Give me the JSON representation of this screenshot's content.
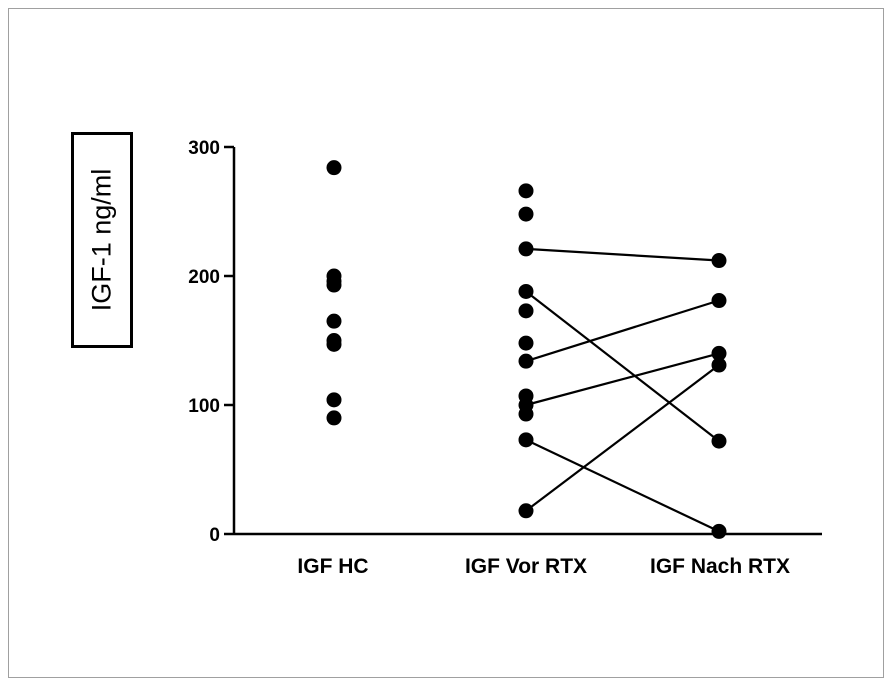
{
  "chart_data": {
    "type": "scatter",
    "title": "",
    "xlabel": "",
    "ylabel": "IGF-1 ng/ml",
    "ylim": [
      0,
      300
    ],
    "yticks": [
      0,
      100,
      200,
      300
    ],
    "categories": [
      "IGF HC",
      "IGF Vor RTX",
      "IGF Nach RTX"
    ],
    "grid": false,
    "legend": "none",
    "marker_color": "#000000",
    "series": [
      {
        "category": "IGF HC",
        "values": [
          284,
          200,
          196,
          193,
          165,
          150,
          147,
          104,
          90
        ]
      },
      {
        "category": "IGF Vor RTX",
        "values": [
          266,
          248,
          221,
          188,
          173,
          148,
          134,
          107,
          100,
          93,
          73,
          18
        ]
      },
      {
        "category": "IGF Nach RTX",
        "values": [
          212,
          181,
          140,
          131,
          72,
          2
        ]
      }
    ],
    "paired_lines": [
      {
        "from": 221,
        "to": 212
      },
      {
        "from": 188,
        "to": 72
      },
      {
        "from": 134,
        "to": 181
      },
      {
        "from": 100,
        "to": 140
      },
      {
        "from": 73,
        "to": 2
      },
      {
        "from": 18,
        "to": 131
      }
    ]
  }
}
